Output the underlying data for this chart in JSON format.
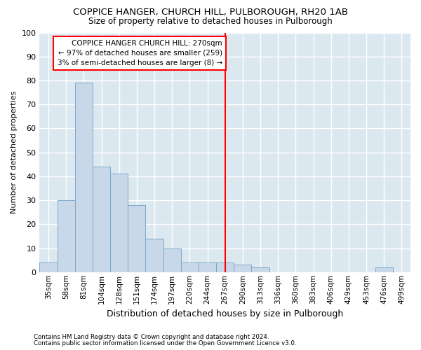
{
  "title1": "COPPICE HANGER, CHURCH HILL, PULBOROUGH, RH20 1AB",
  "title2": "Size of property relative to detached houses in Pulborough",
  "xlabel": "Distribution of detached houses by size in Pulborough",
  "ylabel": "Number of detached properties",
  "categories": [
    "35sqm",
    "58sqm",
    "81sqm",
    "104sqm",
    "128sqm",
    "151sqm",
    "174sqm",
    "197sqm",
    "220sqm",
    "244sqm",
    "267sqm",
    "290sqm",
    "313sqm",
    "336sqm",
    "360sqm",
    "383sqm",
    "406sqm",
    "429sqm",
    "453sqm",
    "476sqm",
    "499sqm"
  ],
  "values": [
    4,
    30,
    79,
    44,
    41,
    28,
    14,
    10,
    4,
    4,
    4,
    3,
    2,
    0,
    0,
    0,
    0,
    0,
    0,
    2,
    0
  ],
  "bar_color": "#c8d8e8",
  "bar_edge_color": "#7ba8cc",
  "annotation_text": "COPPICE HANGER CHURCH HILL: 270sqm\n← 97% of detached houses are smaller (259)\n3% of semi-detached houses are larger (8) →",
  "ylim": [
    0,
    100
  ],
  "yticks": [
    0,
    10,
    20,
    30,
    40,
    50,
    60,
    70,
    80,
    90,
    100
  ],
  "footer1": "Contains HM Land Registry data © Crown copyright and database right 2024.",
  "footer2": "Contains public sector information licensed under the Open Government Licence v3.0.",
  "fig_bg_color": "#ffffff",
  "plot_bg_color": "#dce8f0",
  "grid_color": "#ffffff",
  "vline_index": 10
}
